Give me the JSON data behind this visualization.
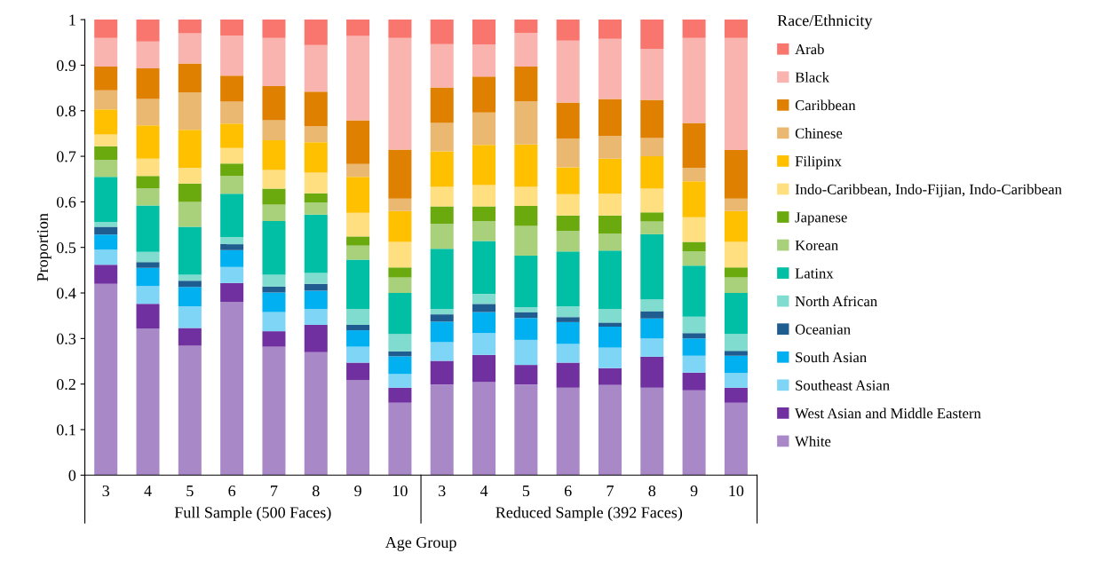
{
  "chart_data": {
    "type": "bar",
    "stacked": true,
    "xlabel": "Age Group",
    "ylabel": "Proportion",
    "legend_title": "Race/Ethnicity",
    "legend": "right",
    "grid": false,
    "categories": [
      "3",
      "4",
      "5",
      "6",
      "7",
      "8",
      "9",
      "10",
      "3",
      "4",
      "5",
      "6",
      "7",
      "8",
      "9",
      "10"
    ],
    "annotations": [
      "Full Sample (500 Faces)",
      "Reduced Sample (392 Faces)"
    ],
    "ylim": [
      0,
      1
    ],
    "yticks": [
      0,
      0.1,
      0.2,
      0.3,
      0.4,
      0.5,
      0.6,
      0.7,
      0.8,
      0.9,
      1
    ],
    "series": [
      {
        "name": "White",
        "color": "#a988c8",
        "values": [
          0.42,
          0.322,
          0.284,
          0.38,
          0.282,
          0.27,
          0.209,
          0.159,
          0.199,
          0.205,
          0.199,
          0.192,
          0.198,
          0.192,
          0.186,
          0.159
        ]
      },
      {
        "name": "West Asian and Middle Eastern",
        "color": "#7030a0",
        "values": [
          0.042,
          0.054,
          0.039,
          0.042,
          0.034,
          0.06,
          0.038,
          0.033,
          0.052,
          0.059,
          0.043,
          0.055,
          0.037,
          0.068,
          0.039,
          0.033
        ]
      },
      {
        "name": "Southeast Asian",
        "color": "#7fd5f5",
        "values": [
          0.033,
          0.039,
          0.048,
          0.035,
          0.042,
          0.035,
          0.035,
          0.03,
          0.041,
          0.048,
          0.055,
          0.041,
          0.045,
          0.04,
          0.037,
          0.032
        ]
      },
      {
        "name": "South Asian",
        "color": "#00b0f0",
        "values": [
          0.033,
          0.04,
          0.042,
          0.037,
          0.043,
          0.04,
          0.036,
          0.039,
          0.045,
          0.046,
          0.048,
          0.048,
          0.046,
          0.044,
          0.038,
          0.038
        ]
      },
      {
        "name": "Oceanian",
        "color": "#1f5c8f",
        "values": [
          0.017,
          0.013,
          0.014,
          0.013,
          0.013,
          0.015,
          0.012,
          0.011,
          0.016,
          0.018,
          0.013,
          0.011,
          0.009,
          0.016,
          0.012,
          0.011
        ]
      },
      {
        "name": "North African",
        "color": "#7fdccf",
        "values": [
          0.011,
          0.022,
          0.013,
          0.016,
          0.026,
          0.024,
          0.035,
          0.038,
          0.012,
          0.022,
          0.011,
          0.024,
          0.03,
          0.026,
          0.036,
          0.037
        ]
      },
      {
        "name": "Latinx",
        "color": "#00bfa5",
        "values": [
          0.099,
          0.102,
          0.105,
          0.095,
          0.118,
          0.128,
          0.108,
          0.09,
          0.132,
          0.116,
          0.113,
          0.12,
          0.128,
          0.143,
          0.112,
          0.09
        ]
      },
      {
        "name": "Korean",
        "color": "#a9d07a",
        "values": [
          0.037,
          0.038,
          0.055,
          0.039,
          0.036,
          0.027,
          0.031,
          0.034,
          0.055,
          0.044,
          0.065,
          0.045,
          0.037,
          0.028,
          0.031,
          0.034
        ]
      },
      {
        "name": "Japanese",
        "color": "#6aaa0f",
        "values": [
          0.03,
          0.027,
          0.04,
          0.027,
          0.035,
          0.02,
          0.02,
          0.022,
          0.038,
          0.032,
          0.044,
          0.034,
          0.04,
          0.02,
          0.021,
          0.022
        ]
      },
      {
        "name": "Indo-Caribbean, Indo-Fijian, Indo-Caribbean",
        "color": "#ffdf7f",
        "values": [
          0.026,
          0.038,
          0.035,
          0.034,
          0.041,
          0.045,
          0.052,
          0.056,
          0.043,
          0.047,
          0.042,
          0.047,
          0.048,
          0.052,
          0.054,
          0.056
        ]
      },
      {
        "name": "Filipinx",
        "color": "#ffc000",
        "values": [
          0.055,
          0.073,
          0.083,
          0.054,
          0.065,
          0.067,
          0.079,
          0.068,
          0.078,
          0.088,
          0.093,
          0.059,
          0.077,
          0.071,
          0.079,
          0.068
        ]
      },
      {
        "name": "Chinese",
        "color": "#eab870",
        "values": [
          0.042,
          0.058,
          0.082,
          0.048,
          0.044,
          0.035,
          0.028,
          0.027,
          0.062,
          0.071,
          0.095,
          0.063,
          0.05,
          0.04,
          0.03,
          0.027
        ]
      },
      {
        "name": "Caribbean",
        "color": "#e08000",
        "values": [
          0.052,
          0.067,
          0.064,
          0.057,
          0.075,
          0.076,
          0.096,
          0.108,
          0.078,
          0.079,
          0.076,
          0.079,
          0.081,
          0.084,
          0.098,
          0.107
        ]
      },
      {
        "name": "Black",
        "color": "#f9b4b0",
        "values": [
          0.063,
          0.059,
          0.066,
          0.088,
          0.106,
          0.102,
          0.185,
          0.245,
          0.095,
          0.07,
          0.074,
          0.136,
          0.132,
          0.112,
          0.187,
          0.246
        ]
      },
      {
        "name": "Arab",
        "color": "#f8766d",
        "values": [
          0.04,
          0.048,
          0.03,
          0.035,
          0.04,
          0.056,
          0.036,
          0.04,
          0.054,
          0.055,
          0.029,
          0.046,
          0.042,
          0.064,
          0.04,
          0.04
        ]
      }
    ]
  }
}
